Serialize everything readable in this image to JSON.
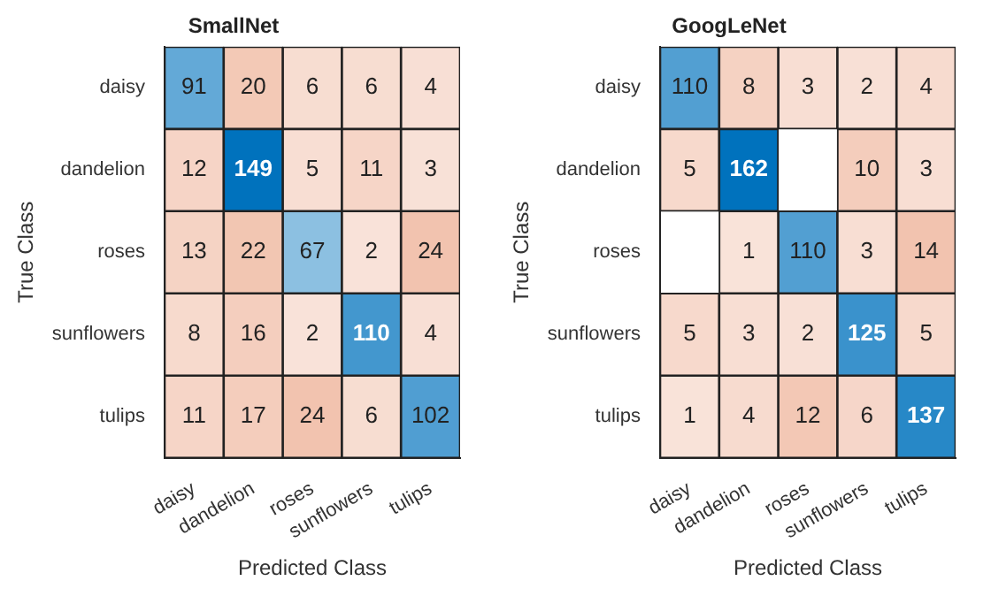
{
  "chart_data": [
    {
      "type": "heatmap",
      "data_labels": true,
      "title": "SmallNet",
      "xlabel": "Predicted Class",
      "ylabel": "True Class",
      "categories": [
        "daisy",
        "dandelion",
        "roses",
        "sunflowers",
        "tulips"
      ],
      "y_categories": [
        "daisy",
        "dandelion",
        "roses",
        "sunflowers",
        "tulips"
      ],
      "cells": [
        [
          91,
          20,
          6,
          6,
          4
        ],
        [
          12,
          149,
          5,
          11,
          3
        ],
        [
          13,
          22,
          67,
          2,
          24
        ],
        [
          8,
          16,
          2,
          110,
          4
        ],
        [
          11,
          17,
          24,
          6,
          102
        ]
      ]
    },
    {
      "type": "heatmap",
      "data_labels": true,
      "title": "GoogLeNet",
      "xlabel": "Predicted Class",
      "ylabel": "True Class",
      "categories": [
        "daisy",
        "dandelion",
        "roses",
        "sunflowers",
        "tulips"
      ],
      "y_categories": [
        "daisy",
        "dandelion",
        "roses",
        "sunflowers",
        "tulips"
      ],
      "cells": [
        [
          110,
          8,
          3,
          2,
          4
        ],
        [
          5,
          162,
          null,
          10,
          3
        ],
        [
          null,
          1,
          110,
          3,
          14
        ],
        [
          5,
          3,
          2,
          125,
          5
        ],
        [
          1,
          4,
          12,
          6,
          137
        ]
      ]
    }
  ]
}
